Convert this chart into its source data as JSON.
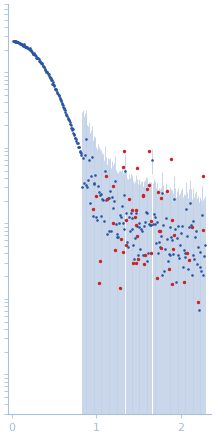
{
  "bg_color": "#ffffff",
  "axis_color": "#a8c0d8",
  "dot_color_blue": "#2855a0",
  "dot_color_red": "#cc2222",
  "errorbar_color": "#c0d0e8",
  "xlim": [
    -0.04,
    2.35
  ],
  "ylim": [
    0.0003,
    80
  ],
  "xticks": [
    0,
    1,
    2
  ],
  "xtick_labels": [
    "0",
    "1",
    "2"
  ],
  "seed_main": 42,
  "seed_red": 123,
  "n_low": 130,
  "n_high": 140,
  "n_red": 55,
  "q_low_start": 0.018,
  "q_low_end": 0.82,
  "q_high_start": 0.83,
  "q_high_end": 2.28,
  "q_red_start": 0.87,
  "q_red_end": 2.28
}
